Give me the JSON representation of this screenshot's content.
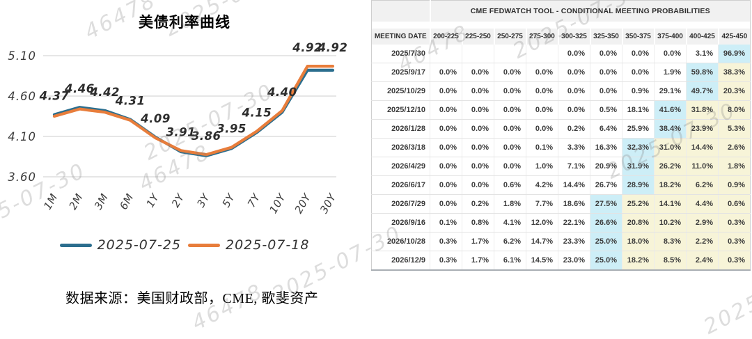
{
  "chart_data": {
    "type": "line",
    "title": "美债利率曲线",
    "categories": [
      "1M",
      "2M",
      "3M",
      "6M",
      "1Y",
      "2Y",
      "3Y",
      "5Y",
      "7Y",
      "10Y",
      "20Y",
      "30Y"
    ],
    "series": [
      {
        "name": "2025-07-25",
        "color": "#2B6E8E",
        "values": [
          4.37,
          4.46,
          4.42,
          4.31,
          4.09,
          3.91,
          3.86,
          3.95,
          4.15,
          4.4,
          4.92,
          4.92
        ]
      },
      {
        "name": "2025-07-18",
        "color": "#E87D3B",
        "values": [
          4.35,
          4.44,
          4.4,
          4.3,
          4.08,
          3.925,
          3.875,
          3.965,
          4.165,
          4.42,
          4.97,
          4.97
        ]
      }
    ],
    "point_labels": [
      "4.37",
      "4.46",
      "4.42",
      "4.31",
      "4.09",
      "3.91",
      "3.86",
      "3.95",
      "4.15",
      "4.40",
      "4.92",
      "4.92"
    ],
    "yticks": [
      5.1,
      4.6,
      4.1,
      3.6
    ],
    "ylim": [
      3.6,
      5.1
    ],
    "grid": true,
    "legend_position": "bottom"
  },
  "source_text": "数据来源：美国财政部，CME, 歌斐资产",
  "watermarks": {
    "id_text": "46478",
    "date_text": "2025-07-30"
  },
  "table": {
    "title": "CME FEDWATCH TOOL - CONDITIONAL MEETING PROBABILITIES",
    "date_header": "MEETING DATE",
    "bin_headers": [
      "200-225",
      "225-250",
      "250-275",
      "275-300",
      "300-325",
      "325-350",
      "350-375",
      "375-400",
      "400-425",
      "425-450"
    ],
    "highlight": {
      "max_color": "#cdeef7",
      "right_of_max_color": "#f7f4d8"
    },
    "rows": [
      {
        "date": "2025/7/30",
        "values": [
          "",
          "",
          "",
          "",
          "0.0%",
          "0.0%",
          "0.0%",
          "0.0%",
          "3.1%",
          "96.9%"
        ]
      },
      {
        "date": "2025/9/17",
        "values": [
          "0.0%",
          "0.0%",
          "0.0%",
          "0.0%",
          "0.0%",
          "0.0%",
          "0.0%",
          "1.9%",
          "59.8%",
          "38.3%"
        ]
      },
      {
        "date": "2025/10/29",
        "values": [
          "0.0%",
          "0.0%",
          "0.0%",
          "0.0%",
          "0.0%",
          "0.0%",
          "0.9%",
          "29.1%",
          "49.7%",
          "20.3%"
        ]
      },
      {
        "date": "2025/12/10",
        "values": [
          "0.0%",
          "0.0%",
          "0.0%",
          "0.0%",
          "0.0%",
          "0.5%",
          "18.1%",
          "41.6%",
          "31.8%",
          "8.0%"
        ]
      },
      {
        "date": "2026/1/28",
        "values": [
          "0.0%",
          "0.0%",
          "0.0%",
          "0.0%",
          "0.2%",
          "6.4%",
          "25.9%",
          "38.4%",
          "23.9%",
          "5.3%"
        ]
      },
      {
        "date": "2026/3/18",
        "values": [
          "0.0%",
          "0.0%",
          "0.0%",
          "0.1%",
          "3.3%",
          "16.3%",
          "32.3%",
          "31.0%",
          "14.4%",
          "2.6%"
        ]
      },
      {
        "date": "2026/4/29",
        "values": [
          "0.0%",
          "0.0%",
          "0.0%",
          "1.0%",
          "7.1%",
          "20.9%",
          "31.9%",
          "26.2%",
          "11.0%",
          "1.8%"
        ]
      },
      {
        "date": "2026/6/17",
        "values": [
          "0.0%",
          "0.0%",
          "0.6%",
          "4.2%",
          "14.4%",
          "26.7%",
          "28.9%",
          "18.2%",
          "6.2%",
          "0.9%"
        ]
      },
      {
        "date": "2026/7/29",
        "values": [
          "0.0%",
          "0.2%",
          "1.8%",
          "7.7%",
          "18.6%",
          "27.5%",
          "25.2%",
          "14.1%",
          "4.4%",
          "0.6%"
        ]
      },
      {
        "date": "2026/9/16",
        "values": [
          "0.1%",
          "0.8%",
          "4.1%",
          "12.0%",
          "22.1%",
          "26.6%",
          "20.8%",
          "10.2%",
          "2.9%",
          "0.3%"
        ]
      },
      {
        "date": "2026/10/28",
        "values": [
          "0.3%",
          "1.7%",
          "6.2%",
          "14.7%",
          "23.3%",
          "25.0%",
          "18.0%",
          "8.3%",
          "2.2%",
          "0.3%"
        ]
      },
      {
        "date": "2026/12/9",
        "values": [
          "0.3%",
          "1.7%",
          "6.1%",
          "14.5%",
          "23.0%",
          "25.0%",
          "18.2%",
          "8.5%",
          "2.4%",
          "0.3%"
        ]
      }
    ]
  }
}
